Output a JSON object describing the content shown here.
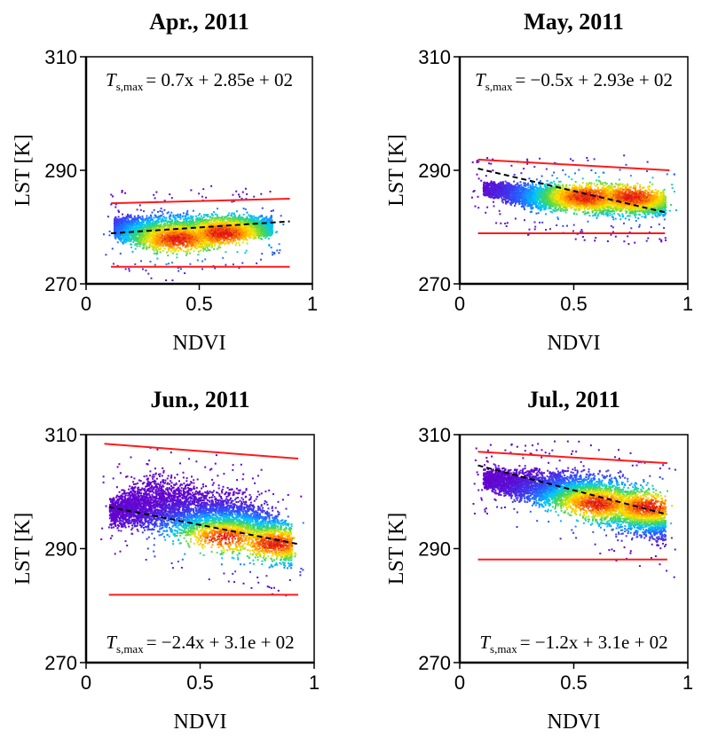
{
  "chart_data": [
    {
      "type": "scatter",
      "title": "Apr., 2011",
      "xlabel": "NDVI",
      "ylabel": "LST [K]",
      "xlim": [
        0,
        1
      ],
      "ylim": [
        270,
        310
      ],
      "xticks": [
        "0",
        "0.5",
        "1"
      ],
      "yticks": [
        "270",
        "290",
        "310"
      ],
      "equation": {
        "lhs": "T",
        "sub": "s,max",
        "rhs": "= 0.7x + 2.85e + 02"
      },
      "eq_position": "top",
      "fit_line": {
        "slope": 0.7,
        "intercept": 285
      },
      "drawn_fit": {
        "x": [
          0.11,
          0.9
        ],
        "y": [
          278.9,
          281.0
        ]
      },
      "wet_edge": {
        "x": [
          0.11,
          0.9
        ],
        "y": [
          273.0,
          273.0
        ]
      },
      "dry_edge": {
        "x": [
          0.11,
          0.9
        ],
        "y": [
          284.2,
          285.0
        ]
      },
      "cloud": {
        "x_min": 0.12,
        "x_max": 0.82,
        "lower": [
          [
            0.12,
            277.5
          ],
          [
            0.3,
            274.5
          ],
          [
            0.5,
            275.0
          ],
          [
            0.7,
            277.0
          ],
          [
            0.82,
            278.0
          ]
        ],
        "upper": [
          [
            0.12,
            282.5
          ],
          [
            0.3,
            283.5
          ],
          [
            0.5,
            283.5
          ],
          [
            0.7,
            283.0
          ],
          [
            0.82,
            282.5
          ]
        ],
        "core": [
          [
            0.4,
            278.0
          ],
          [
            0.6,
            279.0
          ]
        ]
      }
    },
    {
      "type": "scatter",
      "title": "May, 2011",
      "xlabel": "NDVI",
      "ylabel": "LST [K]",
      "xlim": [
        0,
        1
      ],
      "ylim": [
        270,
        310
      ],
      "xticks": [
        "0",
        "0.5",
        "1"
      ],
      "yticks": [
        "270",
        "290",
        "310"
      ],
      "equation": {
        "lhs": "T",
        "sub": "s,max",
        "rhs": "= −0.5x + 2.93e + 02"
      },
      "eq_position": "top",
      "fit_line": {
        "slope": -0.5,
        "intercept": 293
      },
      "drawn_fit": {
        "x": [
          0.08,
          0.9
        ],
        "y": [
          290.3,
          282.6
        ]
      },
      "wet_edge": {
        "x": [
          0.08,
          0.9
        ],
        "y": [
          278.9,
          278.9
        ]
      },
      "dry_edge": {
        "x": [
          0.08,
          0.92
        ],
        "y": [
          291.9,
          290.0
        ]
      },
      "cloud": {
        "x_min": 0.1,
        "x_max": 0.9,
        "lower": [
          [
            0.1,
            285.5
          ],
          [
            0.3,
            282.5
          ],
          [
            0.5,
            282.0
          ],
          [
            0.7,
            281.0
          ],
          [
            0.9,
            281.5
          ]
        ],
        "upper": [
          [
            0.1,
            288.5
          ],
          [
            0.3,
            288.5
          ],
          [
            0.5,
            288.5
          ],
          [
            0.7,
            289.0
          ],
          [
            0.9,
            287.0
          ]
        ],
        "core": [
          [
            0.75,
            285.5
          ],
          [
            0.55,
            285.5
          ]
        ]
      }
    },
    {
      "type": "scatter",
      "title": "Jun., 2011",
      "xlabel": "NDVI",
      "ylabel": "LST [K]",
      "xlim": [
        0,
        1
      ],
      "ylim": [
        270,
        310
      ],
      "xticks": [
        "0",
        "0.5",
        "1"
      ],
      "yticks": [
        "270",
        "290",
        "310"
      ],
      "equation": {
        "lhs": "T",
        "sub": "s,max",
        "rhs": "= −2.4x + 3.1e + 02"
      },
      "eq_position": "bottom",
      "fit_line": {
        "slope": -2.4,
        "intercept": 310
      },
      "drawn_fit": {
        "x": [
          0.1,
          0.93
        ],
        "y": [
          297.3,
          290.8
        ]
      },
      "wet_edge": {
        "x": [
          0.1,
          0.93
        ],
        "y": [
          281.9,
          281.9
        ]
      },
      "dry_edge": {
        "x": [
          0.08,
          0.93
        ],
        "y": [
          308.4,
          305.8
        ]
      },
      "cloud": {
        "x_min": 0.1,
        "x_max": 0.9,
        "lower": [
          [
            0.1,
            293.0
          ],
          [
            0.3,
            291.0
          ],
          [
            0.5,
            289.0
          ],
          [
            0.7,
            287.0
          ],
          [
            0.9,
            285.0
          ]
        ],
        "upper": [
          [
            0.1,
            300.0
          ],
          [
            0.3,
            305.0
          ],
          [
            0.5,
            303.0
          ],
          [
            0.7,
            302.0
          ],
          [
            0.9,
            296.0
          ]
        ],
        "core": [
          [
            0.82,
            291.0
          ],
          [
            0.6,
            292.0
          ]
        ]
      }
    },
    {
      "type": "scatter",
      "title": "Jul., 2011",
      "xlabel": "NDVI",
      "ylabel": "LST [K]",
      "xlim": [
        0,
        1
      ],
      "ylim": [
        270,
        310
      ],
      "xticks": [
        "0",
        "0.5",
        "1"
      ],
      "yticks": [
        "270",
        "290",
        "310"
      ],
      "equation": {
        "lhs": "T",
        "sub": "s,max",
        "rhs": "= −1.2x + 3.1e + 02"
      },
      "eq_position": "bottom",
      "fit_line": {
        "slope": -1.2,
        "intercept": 310
      },
      "drawn_fit": {
        "x": [
          0.08,
          0.91
        ],
        "y": [
          304.6,
          296.0
        ]
      },
      "wet_edge": {
        "x": [
          0.08,
          0.91
        ],
        "y": [
          288.1,
          288.1
        ]
      },
      "dry_edge": {
        "x": [
          0.08,
          0.91
        ],
        "y": [
          307.0,
          305.0
        ]
      },
      "cloud": {
        "x_min": 0.1,
        "x_max": 0.9,
        "lower": [
          [
            0.1,
            300.0
          ],
          [
            0.3,
            297.0
          ],
          [
            0.5,
            295.0
          ],
          [
            0.7,
            291.0
          ],
          [
            0.9,
            289.0
          ]
        ],
        "upper": [
          [
            0.1,
            305.0
          ],
          [
            0.3,
            305.0
          ],
          [
            0.5,
            305.0
          ],
          [
            0.7,
            304.5
          ],
          [
            0.9,
            301.0
          ]
        ],
        "core": [
          [
            0.82,
            297.5
          ],
          [
            0.6,
            298.0
          ]
        ]
      }
    }
  ]
}
